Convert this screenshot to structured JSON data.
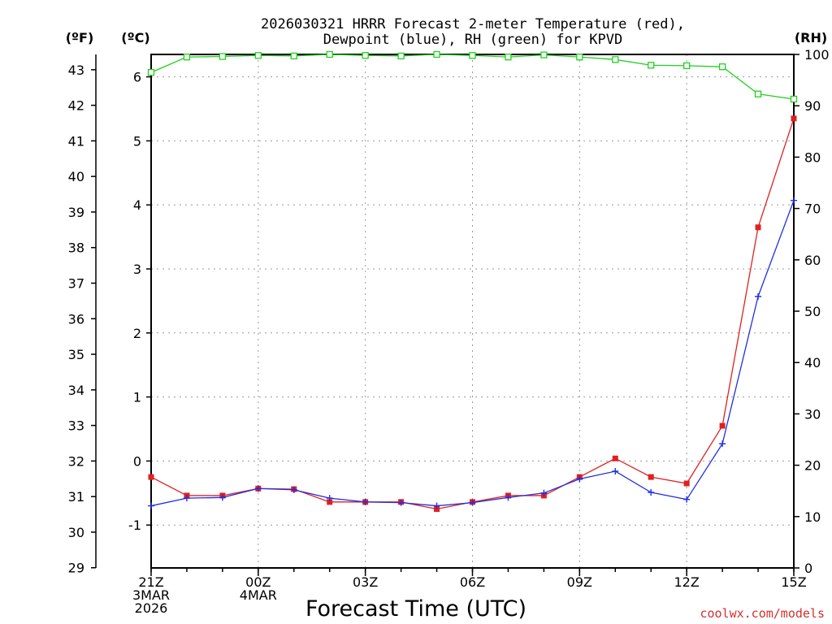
{
  "chart_data": {
    "type": "line",
    "title_line1": "2026030321 HRRR Forecast 2-meter Temperature (red),",
    "title_line2": "Dewpoint (blue), RH (green) for KPVD",
    "xlabel": "Forecast Time (UTC)",
    "y_left_outer_unit": "(ºF)",
    "y_left_inner_unit": "(ºC)",
    "y_right_unit": "(RH)",
    "credit": "coolwx.com/models",
    "credit_color": "#d03030",
    "x_hours": [
      0,
      1,
      2,
      3,
      4,
      5,
      6,
      7,
      8,
      9,
      10,
      11,
      12,
      13,
      14,
      15,
      16,
      17,
      18
    ],
    "x_ticks": [
      {
        "hour": 0,
        "lines": [
          "21Z",
          "3MAR",
          "2026"
        ]
      },
      {
        "hour": 3,
        "lines": [
          "00Z",
          "4MAR"
        ]
      },
      {
        "hour": 6,
        "lines": [
          "03Z"
        ]
      },
      {
        "hour": 9,
        "lines": [
          "06Z"
        ]
      },
      {
        "hour": 12,
        "lines": [
          "09Z"
        ]
      },
      {
        "hour": 15,
        "lines": [
          "12Z"
        ]
      },
      {
        "hour": 18,
        "lines": [
          "15Z"
        ]
      }
    ],
    "celsius_ticks": [
      "-1",
      "0",
      "1",
      "2",
      "3",
      "4",
      "5",
      "6"
    ],
    "fahrenheit_ticks": [
      "29",
      "30",
      "31",
      "32",
      "33",
      "34",
      "35",
      "36",
      "37",
      "38",
      "39",
      "40",
      "41",
      "42",
      "43"
    ],
    "rh_ticks": [
      "0",
      "10",
      "20",
      "30",
      "40",
      "50",
      "60",
      "70",
      "80",
      "90",
      "100"
    ],
    "celsius_range": [
      -1.67,
      6.35
    ],
    "rh_range": [
      0,
      100
    ],
    "series": [
      {
        "name": "Temperature",
        "color": "#e02020",
        "marker": "square-filled",
        "values": [
          -0.25,
          -0.54,
          -0.54,
          -0.43,
          -0.44,
          -0.64,
          -0.64,
          -0.64,
          -0.75,
          -0.64,
          -0.54,
          -0.54,
          -0.25,
          0.04,
          -0.25,
          -0.35,
          0.55,
          3.65,
          5.35
        ]
      },
      {
        "name": "Dewpoint",
        "color": "#2030e0",
        "marker": "plus",
        "values": [
          -0.7,
          -0.58,
          -0.57,
          -0.43,
          -0.45,
          -0.58,
          -0.64,
          -0.65,
          -0.7,
          -0.65,
          -0.57,
          -0.5,
          -0.28,
          -0.16,
          -0.49,
          -0.6,
          0.27,
          2.57,
          4.07
        ]
      },
      {
        "name": "RH",
        "color": "#20d020",
        "marker": "square-open",
        "values": [
          96.5,
          99.5,
          99.6,
          99.8,
          99.7,
          100,
          99.8,
          99.7,
          100,
          99.8,
          99.5,
          99.9,
          99.5,
          99.0,
          97.9,
          97.8,
          97.6,
          92.3,
          91.3
        ]
      }
    ]
  }
}
